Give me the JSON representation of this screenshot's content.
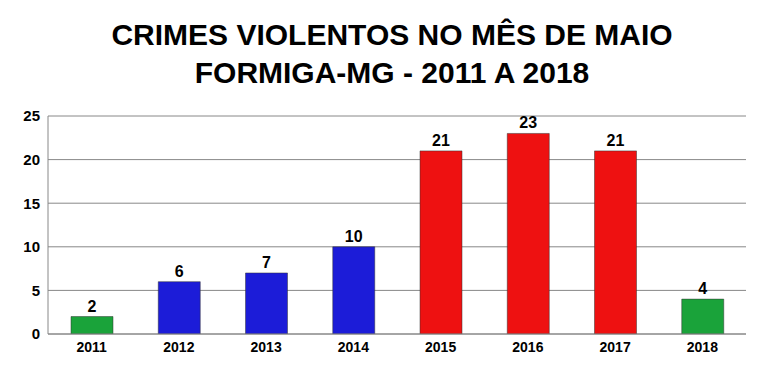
{
  "chart_data": {
    "type": "bar",
    "title": "CRIMES VIOLENTOS NO MÊS DE MAIO",
    "subtitle": "FORMIGA-MG - 2011 A 2018",
    "categories": [
      "2011",
      "2012",
      "2013",
      "2014",
      "2015",
      "2016",
      "2017",
      "2018"
    ],
    "values": [
      2,
      6,
      7,
      10,
      21,
      23,
      21,
      4
    ],
    "colors": [
      "#1aa33a",
      "#1c1cd8",
      "#1c1cd8",
      "#1c1cd8",
      "#ee1111",
      "#ee1111",
      "#ee1111",
      "#1aa33a"
    ],
    "ylim": [
      0,
      25
    ],
    "yticks": [
      0,
      5,
      10,
      15,
      20,
      25
    ],
    "grid": true,
    "data_labels": true
  }
}
